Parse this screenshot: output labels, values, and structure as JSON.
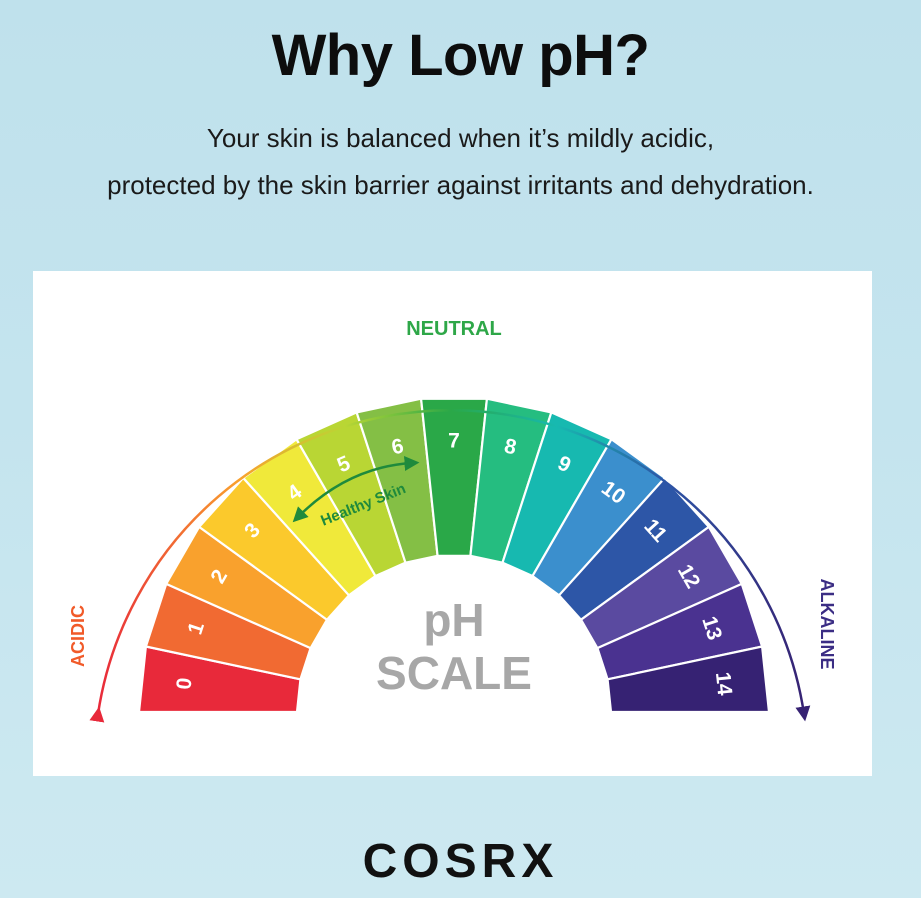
{
  "header": {
    "title": "Why Low pH?",
    "subtitle_line1": "Your skin is balanced when it’s mildly acidic,",
    "subtitle_line2": "protected by the skin barrier against irritants and dehydration."
  },
  "scale": {
    "center_line1": "pH",
    "center_line2": "SCALE",
    "neutral_label": "NEUTRAL",
    "acidic_label": "ACIDIC",
    "alkaline_label": "ALKALINE",
    "healthy_label": "Healthy Skin",
    "healthy_range": [
      4,
      6
    ],
    "segments": [
      {
        "label": "0",
        "color": "#e8293a"
      },
      {
        "label": "1",
        "color": "#f16a32"
      },
      {
        "label": "2",
        "color": "#f9a12d"
      },
      {
        "label": "3",
        "color": "#fbc92c"
      },
      {
        "label": "4",
        "color": "#f0e93a"
      },
      {
        "label": "5",
        "color": "#b9d634"
      },
      {
        "label": "6",
        "color": "#84bf45"
      },
      {
        "label": "7",
        "color": "#2aa848"
      },
      {
        "label": "8",
        "color": "#25bd80"
      },
      {
        "label": "9",
        "color": "#17b9b0"
      },
      {
        "label": "10",
        "color": "#3b8fcd"
      },
      {
        "label": "11",
        "color": "#2d56a7"
      },
      {
        "label": "12",
        "color": "#5a4aa0"
      },
      {
        "label": "13",
        "color": "#4a3290"
      },
      {
        "label": "14",
        "color": "#362273"
      }
    ],
    "colors": {
      "neutral": "#2ea748",
      "acidic": "#f15a29",
      "alkaline": "#3b2d84",
      "center_text": "#a7a7a7",
      "healthy": "#1f8a3c"
    }
  },
  "brand": {
    "logo": "COSRX"
  }
}
